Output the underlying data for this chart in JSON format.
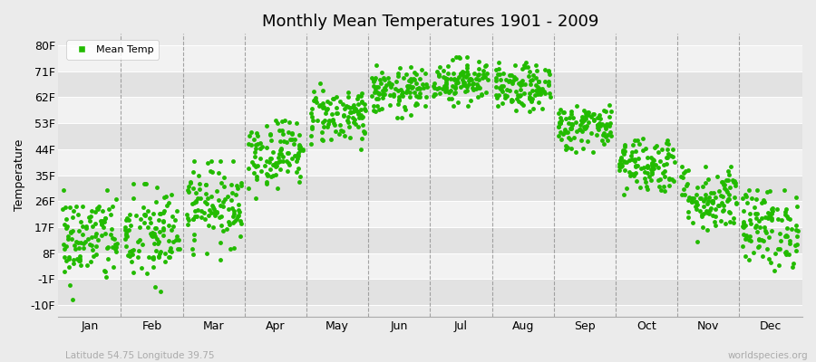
{
  "title": "Monthly Mean Temperatures 1901 - 2009",
  "ylabel": "Temperature",
  "subtitle_left": "Latitude 54.75 Longitude 39.75",
  "subtitle_right": "worldspecies.org",
  "months": [
    "Jan",
    "Feb",
    "Mar",
    "Apr",
    "May",
    "Jun",
    "Jul",
    "Aug",
    "Sep",
    "Oct",
    "Nov",
    "Dec"
  ],
  "yticks": [
    -10,
    -1,
    8,
    17,
    26,
    35,
    44,
    53,
    62,
    71,
    80
  ],
  "ytick_labels": [
    "-10F",
    "-1F",
    "8F",
    "17F",
    "26F",
    "35F",
    "44F",
    "53F",
    "62F",
    "71F",
    "80F"
  ],
  "ylim": [
    -14,
    84
  ],
  "dot_color": "#22bb00",
  "bg_color": "#ebebeb",
  "band_light": "#f2f2f2",
  "band_dark": "#e2e2e2",
  "years": 109,
  "monthly_means_F": [
    13,
    14,
    25,
    43,
    56,
    64,
    68,
    65,
    52,
    39,
    27,
    17
  ],
  "monthly_stds_F": [
    8,
    9,
    7,
    6,
    5,
    4,
    4,
    4,
    4,
    5,
    6,
    7
  ],
  "monthly_mins_F": [
    -10,
    -10,
    5,
    26,
    44,
    55,
    59,
    57,
    41,
    26,
    12,
    2
  ],
  "monthly_maxs_F": [
    30,
    32,
    40,
    54,
    67,
    73,
    76,
    74,
    61,
    50,
    38,
    30
  ],
  "marker_size": 3.5,
  "legend_label": "Mean Temp",
  "title_fontsize": 13,
  "axis_fontsize": 9,
  "ylabel_fontsize": 9
}
